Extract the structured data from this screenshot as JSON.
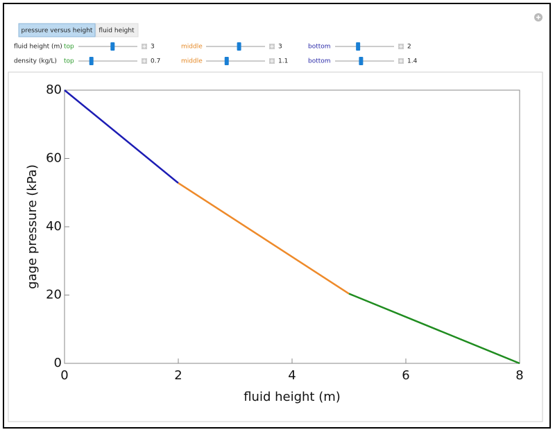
{
  "tabs": [
    "pressure versus height",
    "fluid height"
  ],
  "controls": [
    {
      "label": "fluid height (m)",
      "items": [
        {
          "label": "top",
          "value": 3
        },
        {
          "label": "middle",
          "value": 3
        },
        {
          "label": "bottom",
          "value": 2
        }
      ]
    },
    {
      "label": "density (kg/L)",
      "items": [
        {
          "label": "top",
          "value": 0.7
        },
        {
          "label": "middle",
          "value": 1.1
        },
        {
          "label": "bottom",
          "value": 1.4
        }
      ]
    }
  ],
  "chart_data": {
    "type": "line",
    "xlabel": "fluid height (m)",
    "ylabel": "gage pressure (kPa)",
    "series": [
      {
        "color": "#1c1cb4",
        "x": [
          0,
          2
        ],
        "values": [
          80,
          52.8
        ]
      },
      {
        "color": "#ee8a2a",
        "x": [
          2,
          5
        ],
        "values": [
          52.8,
          20.4
        ]
      },
      {
        "color": "#1f8c1f",
        "x": [
          5,
          8
        ],
        "values": [
          20.4,
          0
        ]
      }
    ],
    "xlim": [
      0,
      8
    ],
    "ylim": [
      0,
      80
    ],
    "xticks": [
      0,
      2,
      4,
      6,
      8
    ],
    "yticks": [
      0,
      20,
      40,
      60,
      80
    ]
  }
}
